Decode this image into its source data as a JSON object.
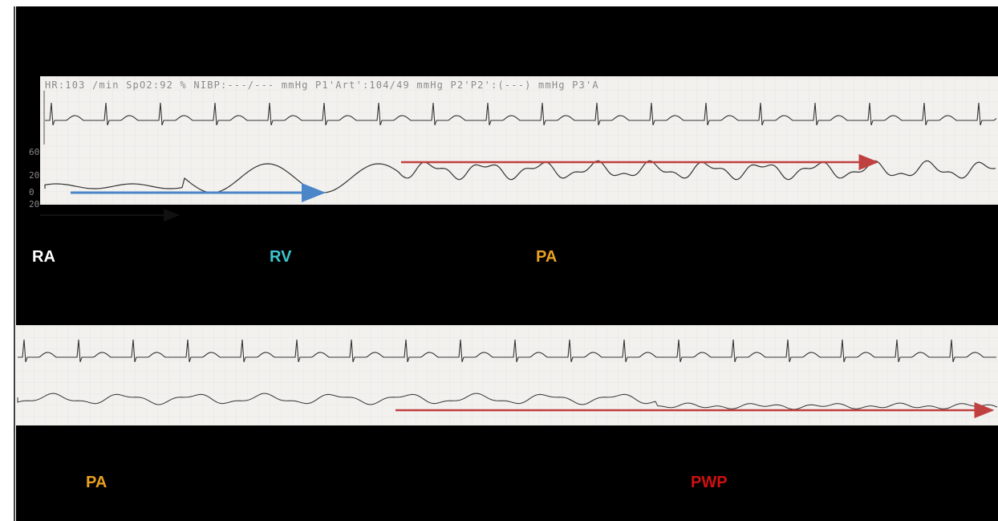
{
  "strip_header": "HR:103 /min SpO2:92 % NIBP:---/--- mmHg P1'Art':104/49 mmHg P2'P2':(---) mmHg P3'A",
  "pressure_scale": [
    "60",
    "20",
    "0",
    "20"
  ],
  "labels": {
    "top": [
      "RA",
      "RV",
      "PA"
    ],
    "bottom": [
      "PA",
      "PWP"
    ]
  }
}
